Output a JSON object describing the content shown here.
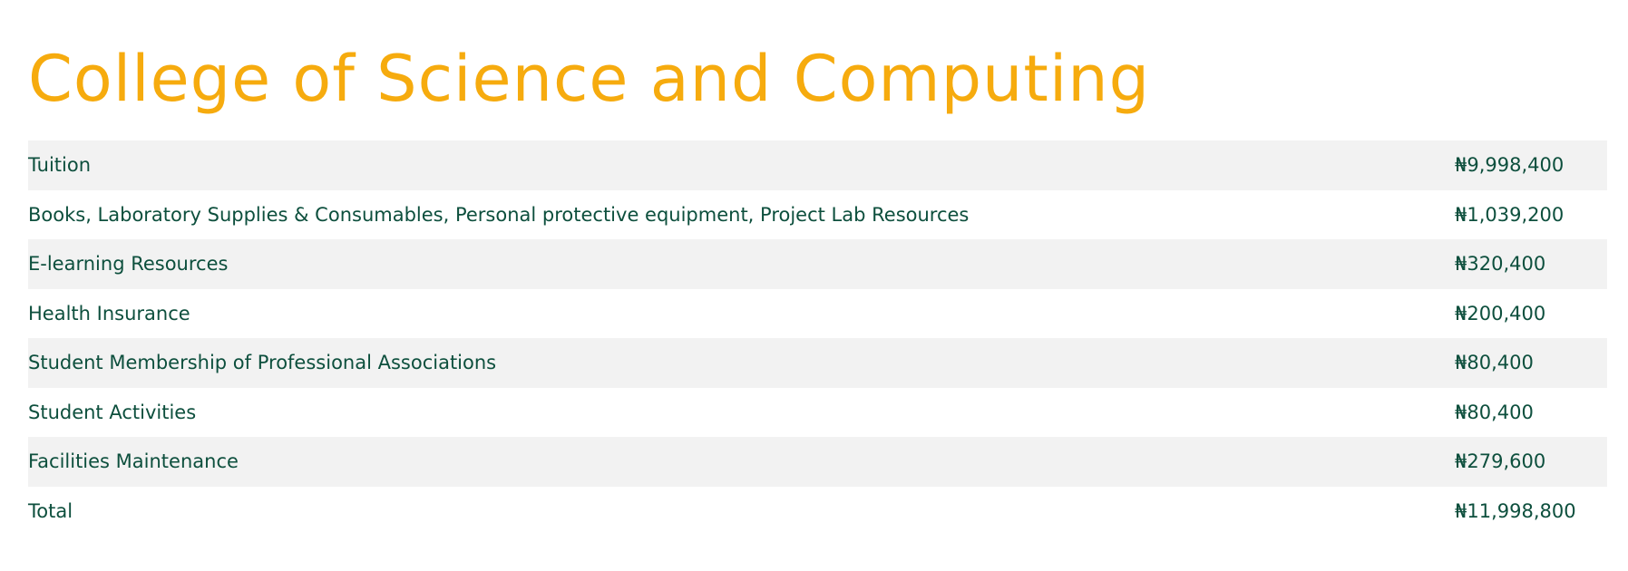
{
  "title": "College of Science and Computing",
  "table": {
    "rows": [
      [
        "Tuition",
        "₦9,998,400"
      ],
      [
        "Books, Laboratory Supplies & Consumables, Personal protective equipment, Project Lab Resources",
        "₦1,039,200"
      ],
      [
        "E-learning Resources",
        "₦320,400"
      ],
      [
        "Health Insurance",
        "₦200,400"
      ],
      [
        "Student Membership of Professional Associations",
        "₦80,400"
      ],
      [
        "Student Activities",
        "₦80,400"
      ],
      [
        "Facilities Maintenance",
        "₦279,600"
      ],
      [
        "Total",
        "₦11,998,800"
      ]
    ]
  }
}
